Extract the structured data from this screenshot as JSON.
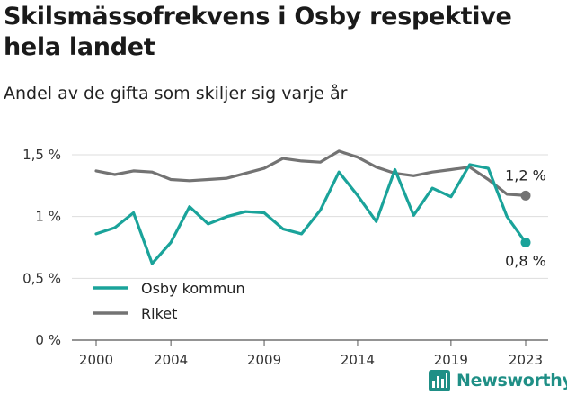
{
  "chart_data": {
    "type": "line",
    "title": "Skilsmässofrekvens i Osby respektive hela landet",
    "subtitle": "Andel av de gifta som skiljer sig varje år",
    "x": [
      2000,
      2001,
      2002,
      2003,
      2004,
      2005,
      2006,
      2007,
      2008,
      2009,
      2010,
      2011,
      2012,
      2013,
      2014,
      2015,
      2016,
      2017,
      2018,
      2019,
      2020,
      2021,
      2022,
      2023
    ],
    "series": [
      {
        "name": "Osby kommun",
        "color": "#1aa39a",
        "values": [
          0.86,
          0.91,
          1.03,
          0.62,
          0.79,
          1.08,
          0.94,
          1.0,
          1.04,
          1.03,
          0.9,
          0.86,
          1.05,
          1.36,
          1.17,
          0.96,
          1.38,
          1.01,
          1.23,
          1.16,
          1.42,
          1.39,
          1.0,
          0.79
        ],
        "end_label": "0,8 %"
      },
      {
        "name": "Riket",
        "color": "#737373",
        "values": [
          1.37,
          1.34,
          1.37,
          1.36,
          1.3,
          1.29,
          1.3,
          1.31,
          1.35,
          1.39,
          1.47,
          1.45,
          1.44,
          1.53,
          1.48,
          1.4,
          1.35,
          1.33,
          1.36,
          1.38,
          1.4,
          1.3,
          1.18,
          1.17
        ],
        "end_label": "1,2 %"
      }
    ],
    "x_ticks": [
      2000,
      2004,
      2009,
      2014,
      2019,
      2023
    ],
    "y_ticks": [
      {
        "value": 0,
        "label": "0 %"
      },
      {
        "value": 0.5,
        "label": "0,5 %"
      },
      {
        "value": 1,
        "label": "1 %"
      },
      {
        "value": 1.5,
        "label": "1,5 %"
      }
    ],
    "ylim": [
      0,
      1.5
    ],
    "xlim": [
      2000,
      2023
    ],
    "grid": "horizontal",
    "legend_placement": "bottom-left",
    "xlabel": "",
    "ylabel": ""
  },
  "branding": {
    "logo_text": "Newsworthy",
    "logo_icon": "bar-chart-icon",
    "logo_color": "#1f8f86"
  }
}
